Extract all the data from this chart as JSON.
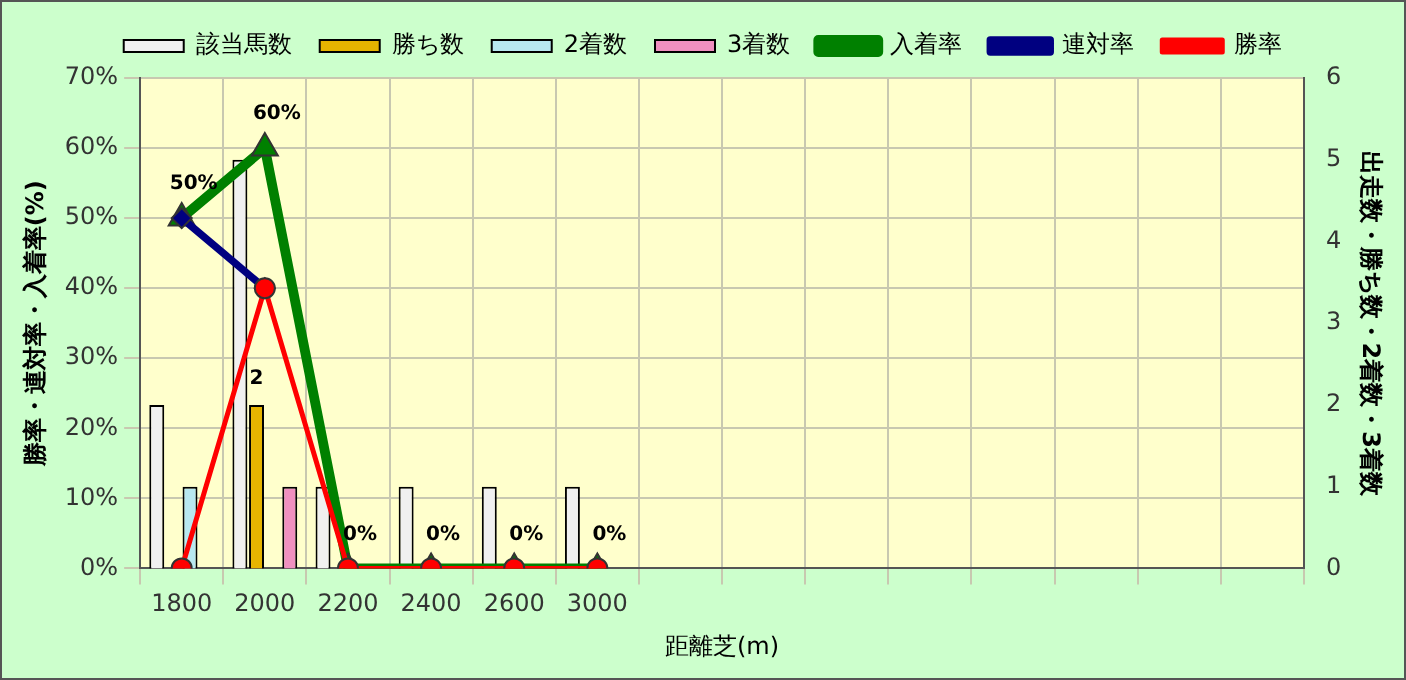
{
  "chart_data": {
    "type": "bar",
    "xlabel": "距離芝(m)",
    "ylabel": "勝率・連対率・入着率(%)",
    "y2label": "出走数・勝ち数・2着数・3着数",
    "categories": [
      "1800",
      "2000",
      "2200",
      "2400",
      "2600",
      "3000",
      null,
      null,
      null,
      null,
      null,
      null,
      null,
      null
    ],
    "series": [
      {
        "name": "該当馬数",
        "axis": "y2",
        "color": "#f0f0f0",
        "values": [
          2,
          5,
          1,
          1,
          1,
          1,
          null,
          null,
          null,
          null,
          null,
          null,
          null,
          null
        ]
      },
      {
        "name": "勝ち数",
        "axis": "y2",
        "color": "#e6b400",
        "values": [
          0,
          2,
          0,
          0,
          0,
          0,
          null,
          null,
          null,
          null,
          null,
          null,
          null,
          null
        ],
        "value_labels": [
          null,
          "2",
          null,
          null,
          null,
          null,
          null,
          null,
          null,
          null,
          null,
          null,
          null,
          null
        ]
      },
      {
        "name": "2着数",
        "axis": "y2",
        "color": "#b8e8f0",
        "values": [
          1,
          0,
          0,
          0,
          0,
          0,
          null,
          null,
          null,
          null,
          null,
          null,
          null,
          null
        ]
      },
      {
        "name": "3着数",
        "axis": "y2",
        "color": "#f090c0",
        "values": [
          0,
          1,
          0,
          0,
          0,
          0,
          null,
          null,
          null,
          null,
          null,
          null,
          null,
          null
        ]
      },
      {
        "name": "入着率",
        "type": "line",
        "color": "#008000",
        "marker": "triangle",
        "values": [
          50,
          60,
          0,
          0,
          0,
          0,
          null,
          null,
          null,
          null,
          null,
          null,
          null,
          null
        ],
        "value_labels": [
          "50%",
          "60%",
          "0%",
          "0%",
          "0%",
          "0%",
          null,
          null,
          null,
          null,
          null,
          null,
          null,
          null
        ]
      },
      {
        "name": "連対率",
        "type": "line",
        "color": "#000080",
        "marker": "diamond",
        "values": [
          50,
          40,
          null,
          null,
          null,
          null,
          null,
          null,
          null,
          null,
          null,
          null,
          null,
          null
        ]
      },
      {
        "name": "勝率",
        "type": "line",
        "color": "#ff0000",
        "marker": "circle",
        "values": [
          0,
          40,
          0,
          0,
          0,
          0,
          null,
          null,
          null,
          null,
          null,
          null,
          null,
          null
        ]
      }
    ],
    "ylim": [
      0,
      70
    ],
    "yticks": [
      {
        "value": 0,
        "label": "0%"
      },
      {
        "value": 10,
        "label": "10%"
      },
      {
        "value": 20,
        "label": "20%"
      },
      {
        "value": 30,
        "label": "30%"
      },
      {
        "value": 40,
        "label": "40%"
      },
      {
        "value": 50,
        "label": "50%"
      },
      {
        "value": 60,
        "label": "60%"
      },
      {
        "value": 70,
        "label": "70%"
      }
    ],
    "y2lim": [
      0,
      6
    ],
    "y2ticks": [
      0,
      1,
      2,
      3,
      4,
      5,
      6
    ],
    "grid": true,
    "legend": "top"
  }
}
